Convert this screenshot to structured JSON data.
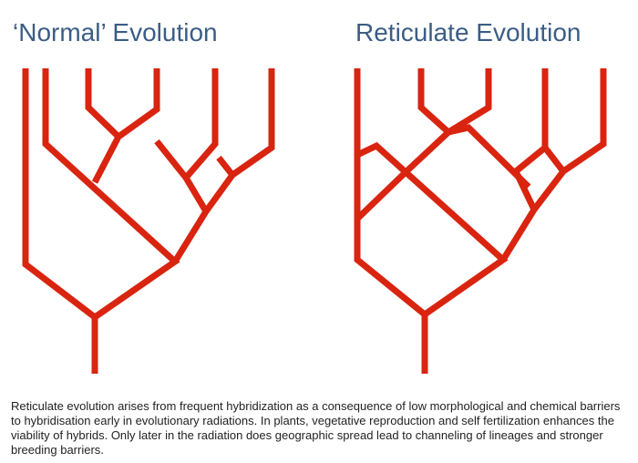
{
  "titles": {
    "left": "‘Normal’ Evolution",
    "right": "Reticulate Evolution"
  },
  "caption": "Reticulate evolution arises from frequent hybridization as a consequence of low morphological and chemical barriers to hybridisation early in evolutionary radiations. In plants, vegetative reproduction and self fertilization enhances the viability of hybrids. Only later in the radiation does geographic spread lead to channeling of lineages and stronger breeding barriers."
}
